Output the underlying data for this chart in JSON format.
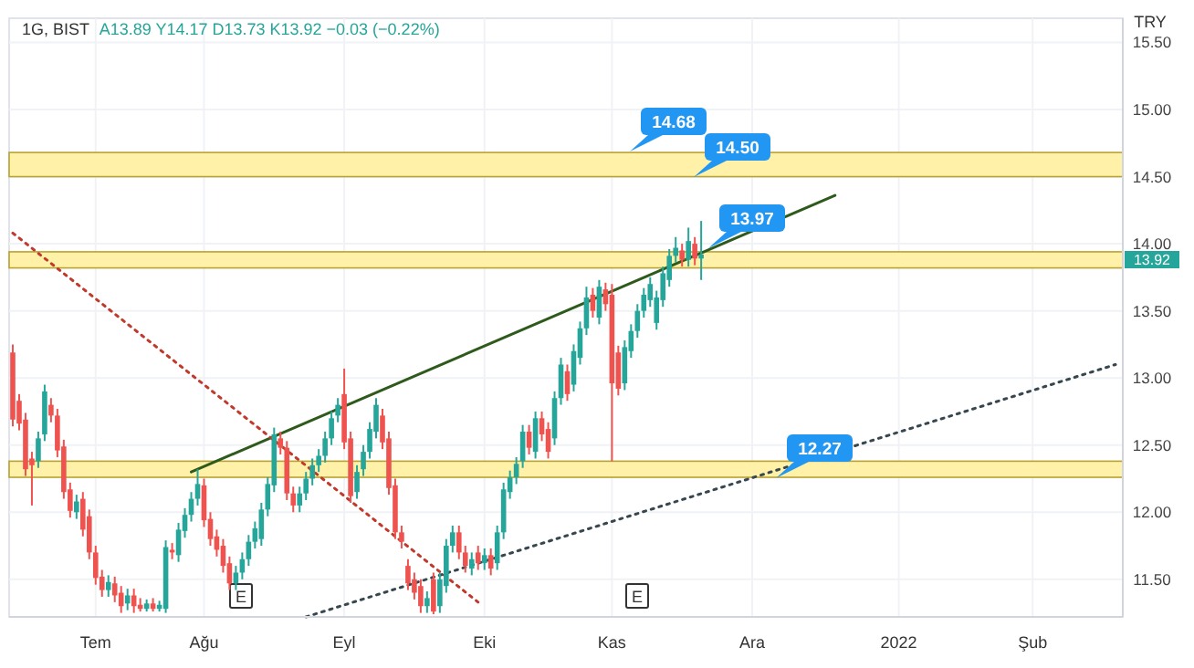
{
  "chart_data": {
    "type": "candlestick",
    "title": "1G, BIST",
    "subtitle": "A13.89  Y14.17  D13.73  K13.92  −0.03 (−0.22%)",
    "categories": [
      null,
      null,
      null,
      null,
      null,
      null,
      null,
      null,
      null,
      null,
      null,
      null,
      null,
      "Tem",
      null,
      null,
      null,
      null,
      null,
      null,
      null,
      null,
      null,
      null,
      null,
      null,
      null,
      null,
      null,
      null,
      "Ağu",
      null,
      null,
      null,
      null,
      null,
      null,
      null,
      null,
      null,
      null,
      null,
      null,
      null,
      null,
      null,
      null,
      null,
      null,
      null,
      null,
      null,
      "Eyl",
      null,
      null,
      null,
      null,
      null,
      null,
      null,
      null,
      null,
      null,
      null,
      null,
      null,
      null,
      null,
      null,
      null,
      null,
      null,
      null,
      null,
      "Eki",
      null,
      null,
      null,
      null,
      null,
      null,
      null,
      null,
      null,
      null,
      null,
      null,
      null,
      null,
      null,
      null,
      null,
      null,
      null,
      "Kas",
      null,
      null,
      null,
      null,
      null,
      null,
      null,
      null,
      null,
      null,
      null,
      null,
      null,
      null,
      null,
      null,
      null,
      null,
      null,
      null,
      null,
      "Ara",
      null,
      null,
      null,
      null,
      null,
      null,
      null,
      null,
      null,
      null,
      null,
      null,
      null,
      null,
      null,
      null,
      null,
      null,
      null,
      null,
      null,
      null,
      "2022",
      null,
      null,
      null,
      null,
      null,
      null,
      null,
      null,
      null,
      null,
      null,
      null,
      null,
      null,
      null,
      null,
      null,
      null,
      null,
      null,
      "Şub",
      null,
      null,
      null,
      null,
      null,
      null,
      null,
      null,
      null,
      null,
      null,
      null,
      null
    ],
    "ohlc": [
      [
        13.19,
        13.25,
        12.64,
        12.69
      ],
      [
        12.83,
        12.88,
        12.61,
        12.66
      ],
      [
        12.69,
        12.74,
        12.27,
        12.32
      ],
      [
        12.4,
        12.45,
        12.05,
        12.35
      ],
      [
        12.38,
        12.6,
        12.33,
        12.55
      ],
      [
        12.58,
        12.95,
        12.53,
        12.9
      ],
      [
        12.8,
        12.85,
        12.67,
        12.72
      ],
      [
        12.72,
        12.77,
        12.41,
        12.46
      ],
      [
        12.49,
        12.54,
        12.1,
        12.15
      ],
      [
        12.17,
        12.22,
        11.96,
        12.01
      ],
      [
        12.0,
        12.13,
        11.95,
        12.08
      ],
      [
        12.1,
        12.15,
        11.82,
        11.87
      ],
      [
        11.97,
        12.02,
        11.65,
        11.7
      ],
      [
        11.7,
        11.75,
        11.46,
        11.51
      ],
      [
        11.52,
        11.57,
        11.37,
        11.42
      ],
      [
        11.42,
        11.53,
        11.37,
        11.48
      ],
      [
        11.47,
        11.52,
        11.33,
        11.38
      ],
      [
        11.4,
        11.45,
        11.25,
        11.3
      ],
      [
        11.32,
        11.43,
        11.27,
        11.38
      ],
      [
        11.38,
        11.43,
        11.25,
        11.3
      ],
      [
        11.31,
        11.36,
        11.26,
        11.28
      ],
      [
        11.28,
        11.35,
        11.26,
        11.32
      ],
      [
        11.32,
        11.36,
        11.26,
        11.28
      ],
      [
        11.28,
        11.34,
        11.26,
        11.31
      ],
      [
        11.28,
        11.79,
        11.25,
        11.74
      ],
      [
        11.72,
        11.77,
        11.65,
        11.7
      ],
      [
        11.68,
        11.92,
        11.63,
        11.87
      ],
      [
        11.86,
        12.03,
        11.81,
        11.98
      ],
      [
        11.98,
        12.15,
        11.93,
        12.1
      ],
      [
        12.1,
        12.32,
        12.05,
        12.21
      ],
      [
        12.2,
        12.25,
        11.89,
        11.94
      ],
      [
        11.95,
        12.0,
        11.75,
        11.8
      ],
      [
        11.82,
        11.87,
        11.67,
        11.72
      ],
      [
        11.75,
        11.8,
        11.55,
        11.6
      ],
      [
        11.62,
        11.67,
        11.42,
        11.47
      ],
      [
        11.47,
        11.6,
        11.42,
        11.55
      ],
      [
        11.55,
        11.7,
        11.5,
        11.65
      ],
      [
        11.65,
        11.83,
        11.6,
        11.78
      ],
      [
        11.78,
        11.93,
        11.73,
        11.88
      ],
      [
        11.8,
        12.07,
        11.75,
        12.02
      ],
      [
        12.02,
        12.26,
        11.97,
        12.21
      ],
      [
        12.2,
        12.63,
        12.15,
        12.58
      ],
      [
        12.55,
        12.6,
        12.43,
        12.48
      ],
      [
        12.48,
        12.53,
        12.09,
        12.14
      ],
      [
        12.14,
        12.19,
        12.0,
        12.05
      ],
      [
        12.05,
        12.19,
        12.0,
        12.14
      ],
      [
        12.14,
        12.3,
        12.09,
        12.25
      ],
      [
        12.25,
        12.4,
        12.2,
        12.35
      ],
      [
        12.35,
        12.47,
        12.3,
        12.42
      ],
      [
        12.42,
        12.6,
        12.37,
        12.55
      ],
      [
        12.55,
        12.75,
        12.5,
        12.7
      ],
      [
        12.72,
        12.85,
        12.67,
        12.8
      ],
      [
        12.88,
        13.07,
        12.47,
        12.52
      ],
      [
        12.55,
        12.6,
        12.07,
        12.12
      ],
      [
        12.15,
        12.35,
        12.1,
        12.3
      ],
      [
        12.32,
        12.5,
        12.27,
        12.45
      ],
      [
        12.45,
        12.67,
        12.4,
        12.62
      ],
      [
        12.6,
        12.85,
        12.55,
        12.8
      ],
      [
        12.72,
        12.77,
        12.47,
        12.52
      ],
      [
        12.55,
        12.6,
        12.13,
        12.18
      ],
      [
        12.2,
        12.25,
        11.8,
        11.85
      ],
      [
        11.85,
        11.9,
        11.73,
        11.78
      ],
      [
        11.6,
        11.65,
        11.42,
        11.47
      ],
      [
        11.5,
        11.55,
        11.35,
        11.4
      ],
      [
        11.45,
        11.5,
        11.25,
        11.3
      ],
      [
        11.3,
        11.41,
        11.25,
        11.36
      ],
      [
        11.5,
        11.55,
        11.24,
        11.26
      ],
      [
        11.3,
        11.55,
        11.25,
        11.5
      ],
      [
        11.45,
        11.8,
        11.4,
        11.75
      ],
      [
        11.75,
        11.9,
        11.7,
        11.85
      ],
      [
        11.85,
        11.9,
        11.65,
        11.7
      ],
      [
        11.7,
        11.75,
        11.55,
        11.6
      ],
      [
        11.58,
        11.7,
        11.53,
        11.65
      ],
      [
        11.7,
        11.75,
        11.57,
        11.62
      ],
      [
        11.62,
        11.73,
        11.57,
        11.68
      ],
      [
        11.68,
        11.73,
        11.53,
        11.58
      ],
      [
        11.62,
        11.9,
        11.57,
        11.85
      ],
      [
        11.85,
        12.22,
        11.8,
        12.17
      ],
      [
        12.15,
        12.31,
        12.1,
        12.26
      ],
      [
        12.26,
        12.41,
        12.21,
        12.36
      ],
      [
        12.38,
        12.65,
        12.33,
        12.6
      ],
      [
        12.6,
        12.65,
        12.43,
        12.48
      ],
      [
        12.45,
        12.75,
        12.4,
        12.7
      ],
      [
        12.7,
        12.75,
        12.53,
        12.58
      ],
      [
        12.62,
        12.67,
        12.4,
        12.45
      ],
      [
        12.55,
        12.9,
        12.5,
        12.85
      ],
      [
        12.85,
        13.15,
        12.8,
        13.1
      ],
      [
        13.05,
        13.1,
        12.83,
        12.88
      ],
      [
        12.95,
        13.25,
        12.9,
        13.2
      ],
      [
        13.15,
        13.42,
        13.1,
        13.37
      ],
      [
        13.37,
        13.68,
        13.32,
        13.6
      ],
      [
        13.62,
        13.67,
        13.45,
        13.5
      ],
      [
        13.45,
        13.73,
        13.4,
        13.68
      ],
      [
        13.66,
        13.71,
        13.5,
        13.55
      ],
      [
        13.62,
        13.7,
        12.38,
        12.96
      ],
      [
        13.19,
        13.24,
        12.87,
        12.92
      ],
      [
        12.96,
        13.28,
        12.91,
        13.23
      ],
      [
        13.2,
        13.4,
        13.15,
        13.35
      ],
      [
        13.35,
        13.55,
        13.3,
        13.5
      ],
      [
        13.5,
        13.67,
        13.45,
        13.62
      ],
      [
        13.58,
        13.75,
        13.53,
        13.7
      ],
      [
        13.41,
        13.65,
        13.36,
        13.6
      ],
      [
        13.58,
        13.83,
        13.53,
        13.78
      ],
      [
        13.73,
        13.96,
        13.68,
        13.91
      ],
      [
        13.91,
        14.05,
        13.86,
        13.97
      ],
      [
        13.95,
        14.0,
        13.83,
        13.88
      ],
      [
        13.88,
        14.12,
        13.83,
        14.02
      ],
      [
        14.0,
        14.05,
        13.84,
        13.89
      ],
      [
        13.89,
        14.17,
        13.73,
        13.92
      ],
      null,
      null,
      null,
      null,
      null,
      null,
      null,
      null,
      null,
      null,
      null,
      null,
      null,
      null,
      null,
      null,
      null,
      null,
      null,
      null,
      null,
      null,
      null,
      null,
      null,
      null,
      null,
      null,
      null,
      null,
      null,
      null,
      null,
      null,
      null,
      null,
      null,
      null,
      null,
      null,
      null,
      null,
      null,
      null,
      null,
      null,
      null,
      null,
      null,
      null,
      null,
      null,
      null,
      null,
      null,
      null,
      null,
      null,
      null,
      null,
      null,
      null,
      null,
      null,
      null
    ],
    "series": [
      {
        "type": "line",
        "color": "#2e5a1c",
        "line_style": "solid",
        "values": [
          null,
          null,
          null,
          null,
          null,
          null,
          null,
          null,
          null,
          null,
          null,
          null,
          null,
          null,
          null,
          null,
          null,
          null,
          null,
          null,
          null,
          null,
          null,
          null,
          null,
          null,
          null,
          null,
          12.3,
          null,
          null,
          null,
          null,
          null,
          null,
          null,
          null,
          null,
          null,
          null,
          null,
          null,
          null,
          null,
          null,
          null,
          null,
          null,
          null,
          null,
          null,
          null,
          null,
          null,
          null,
          null,
          null,
          null,
          null,
          null,
          null,
          null,
          null,
          null,
          null,
          null,
          null,
          null,
          null,
          null,
          null,
          null,
          null,
          null,
          null,
          null,
          null,
          null,
          null,
          null,
          null,
          null,
          null,
          null,
          null,
          null,
          null,
          null,
          null,
          null,
          null,
          null,
          null,
          null,
          null,
          null,
          null,
          null,
          null,
          null,
          null,
          null,
          null,
          null,
          null,
          null,
          null,
          null,
          null,
          null,
          null,
          null,
          null,
          null,
          null,
          null,
          null,
          null,
          null,
          null,
          null,
          null,
          null,
          null,
          null,
          null,
          null,
          null,
          null,
          14.36,
          null,
          null,
          null,
          null,
          null,
          null,
          null,
          null,
          null,
          null,
          null,
          null,
          null,
          null,
          null,
          null,
          null,
          null,
          null,
          null,
          null,
          null,
          null,
          null,
          null,
          null,
          null,
          null,
          null,
          null,
          null,
          null,
          null,
          null,
          null,
          null,
          null,
          null,
          null,
          null,
          null,
          null,
          null,
          null
        ]
      },
      {
        "type": "line",
        "color": "#c0392b",
        "line_style": "dotted",
        "values": [
          14.08,
          null,
          null,
          null,
          null,
          null,
          null,
          null,
          null,
          null,
          null,
          null,
          null,
          null,
          null,
          null,
          null,
          null,
          null,
          null,
          null,
          null,
          null,
          null,
          null,
          null,
          null,
          null,
          null,
          null,
          null,
          null,
          null,
          null,
          null,
          null,
          null,
          null,
          null,
          null,
          null,
          null,
          null,
          null,
          null,
          null,
          null,
          null,
          null,
          null,
          null,
          null,
          null,
          null,
          null,
          null,
          null,
          null,
          null,
          null,
          null,
          null,
          null,
          null,
          null,
          null,
          null,
          null,
          null,
          null,
          null,
          null,
          null,
          11.33,
          null,
          null,
          null,
          null,
          null,
          null,
          null,
          null,
          null,
          null,
          null,
          null,
          null,
          null,
          null,
          null,
          null,
          null,
          null,
          null,
          null,
          null,
          null,
          null,
          null,
          null,
          null,
          null,
          null,
          null,
          null,
          null,
          null,
          null,
          null,
          null,
          null,
          null,
          null,
          null,
          null,
          null,
          null,
          null,
          null,
          null,
          null,
          null,
          null,
          null,
          null,
          null,
          null,
          null,
          null,
          null,
          null,
          null,
          null,
          null,
          null,
          null,
          null,
          null,
          null,
          null,
          null,
          null,
          null,
          null,
          null,
          null,
          null,
          null,
          null,
          null,
          null,
          null,
          null,
          null,
          null,
          null,
          null,
          null,
          null,
          null,
          null,
          null,
          null,
          null,
          null,
          null,
          null,
          null,
          null,
          null,
          null,
          null,
          null,
          null
        ]
      },
      {
        "type": "line",
        "color": "#37474f",
        "line_style": "dotted",
        "values": [
          null,
          null,
          null,
          null,
          null,
          null,
          null,
          null,
          null,
          null,
          null,
          null,
          null,
          null,
          null,
          null,
          null,
          null,
          null,
          null,
          null,
          null,
          null,
          null,
          null,
          null,
          null,
          null,
          null,
          null,
          null,
          null,
          null,
          null,
          null,
          null,
          null,
          null,
          null,
          null,
          null,
          null,
          null,
          null,
          null,
          null,
          11.22,
          null,
          null,
          null,
          null,
          null,
          null,
          null,
          null,
          null,
          null,
          null,
          null,
          null,
          null,
          null,
          null,
          null,
          null,
          null,
          null,
          null,
          null,
          null,
          null,
          null,
          null,
          null,
          null,
          null,
          null,
          null,
          null,
          null,
          null,
          null,
          null,
          null,
          null,
          null,
          null,
          null,
          null,
          null,
          null,
          null,
          null,
          null,
          null,
          null,
          null,
          null,
          null,
          null,
          null,
          null,
          null,
          null,
          null,
          null,
          null,
          null,
          null,
          null,
          null,
          null,
          null,
          null,
          null,
          null,
          null,
          null,
          null,
          null,
          null,
          null,
          null,
          null,
          null,
          null,
          null,
          null,
          null,
          null,
          null,
          null,
          null,
          null,
          null,
          null,
          null,
          null,
          null,
          null,
          null,
          null,
          null,
          null,
          null,
          null,
          null,
          null,
          null,
          null,
          null,
          null,
          null,
          null,
          null,
          null,
          null,
          null,
          null,
          null,
          null,
          null,
          null,
          null,
          null,
          null,
          null,
          null,
          null,
          null,
          null,
          null,
          null,
          13.1
        ]
      }
    ],
    "bands": [
      {
        "axis": "y",
        "from": 14.5,
        "to": 14.68,
        "color": "#fff2a8"
      },
      {
        "axis": "y",
        "from": 13.82,
        "to": 13.94,
        "color": "#fff2a8"
      },
      {
        "axis": "y",
        "from": 12.26,
        "to": 12.38,
        "color": "#fff2a8"
      }
    ],
    "annotations": [
      "TRY",
      "14.68",
      "14.50",
      "13.97",
      "12.27",
      "13.92",
      "E",
      "E"
    ],
    "ylim": [
      11.22,
      15.68
    ],
    "yticks": [
      {
        "value": 11.5,
        "label": "11.50"
      },
      {
        "value": 12,
        "label": "12.00"
      },
      {
        "value": 12.5,
        "label": "12.50"
      },
      {
        "value": 13,
        "label": "13.00"
      },
      {
        "value": 13.5,
        "label": "13.50"
      },
      {
        "value": 14,
        "label": "14.00"
      },
      {
        "value": 14.5,
        "label": "14.50"
      },
      {
        "value": 15,
        "label": "15.00"
      },
      {
        "value": 15.5,
        "label": "15.50"
      }
    ],
    "grid": true
  }
}
